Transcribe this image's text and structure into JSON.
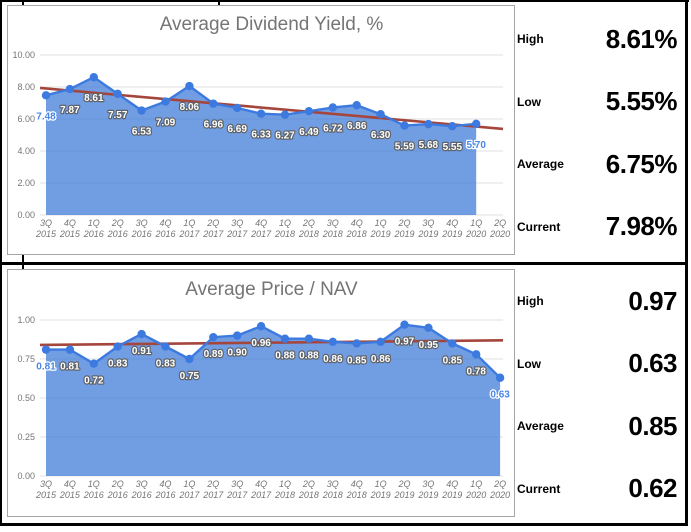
{
  "chart_data": [
    {
      "type": "area",
      "title": "Average Dividend Yield, %",
      "categories": [
        "3Q 2015",
        "4Q 2015",
        "1Q 2016",
        "2Q 2016",
        "3Q 2016",
        "4Q 2016",
        "1Q 2017",
        "2Q 2017",
        "3Q 2017",
        "4Q 2017",
        "1Q 2018",
        "2Q 2018",
        "3Q 2018",
        "4Q 2018",
        "1Q 2019",
        "2Q 2019",
        "3Q 2019",
        "4Q 2019",
        "1Q 2020",
        "2Q 2020"
      ],
      "values": [
        7.48,
        7.87,
        8.61,
        7.57,
        6.53,
        7.09,
        8.06,
        6.96,
        6.69,
        6.33,
        6.27,
        6.49,
        6.72,
        6.86,
        6.3,
        5.59,
        5.68,
        5.55,
        5.7,
        null
      ],
      "y_ticks": [
        0,
        2,
        4,
        6,
        8,
        10
      ],
      "ylim": [
        0,
        10
      ],
      "decimals": 2,
      "grid": true,
      "trend": {
        "start": 7.94,
        "end": 5.38
      },
      "stats": [
        {
          "label": "High",
          "value": "8.61%"
        },
        {
          "label": "Low",
          "value": "5.55%"
        },
        {
          "label": "Average",
          "value": "6.75%"
        },
        {
          "label": "Current",
          "value": "7.98%"
        }
      ]
    },
    {
      "type": "area",
      "title": "Average Price / NAV",
      "categories": [
        "3Q 2015",
        "4Q 2015",
        "1Q 2016",
        "2Q 2016",
        "3Q 2016",
        "4Q 2016",
        "1Q 2017",
        "2Q 2017",
        "3Q 2017",
        "4Q 2017",
        "1Q 2018",
        "2Q 2018",
        "3Q 2018",
        "4Q 2018",
        "1Q 2019",
        "2Q 2019",
        "3Q 2019",
        "4Q 2019",
        "1Q 2020",
        "2Q 2020"
      ],
      "values": [
        0.81,
        0.81,
        0.72,
        0.83,
        0.91,
        0.83,
        0.75,
        0.89,
        0.9,
        0.96,
        0.88,
        0.88,
        0.86,
        0.85,
        0.86,
        0.97,
        0.95,
        0.85,
        0.78,
        0.63
      ],
      "y_ticks": [
        0,
        0.25,
        0.5,
        0.75,
        1.0
      ],
      "ylim": [
        0,
        1
      ],
      "decimals": 2,
      "grid": true,
      "trend": {
        "start": 0.84,
        "end": 0.87
      },
      "stats": [
        {
          "label": "High",
          "value": "0.97"
        },
        {
          "label": "Low",
          "value": "0.63"
        },
        {
          "label": "Average",
          "value": "0.85"
        },
        {
          "label": "Current",
          "value": "0.62"
        }
      ]
    }
  ],
  "colors": {
    "series_line": "#3d7ae0",
    "series_fill": "#3c78d8",
    "trend_line": "#a5463c",
    "axis_text": "#757575",
    "title_text": "#757575",
    "grid_line": "#e2e2e2",
    "label_fill": "#ffffff",
    "label_outline": "#5f6368",
    "label_accent": "#4a86e8",
    "box_border": "#a6a6a6",
    "frame": "#000000"
  }
}
